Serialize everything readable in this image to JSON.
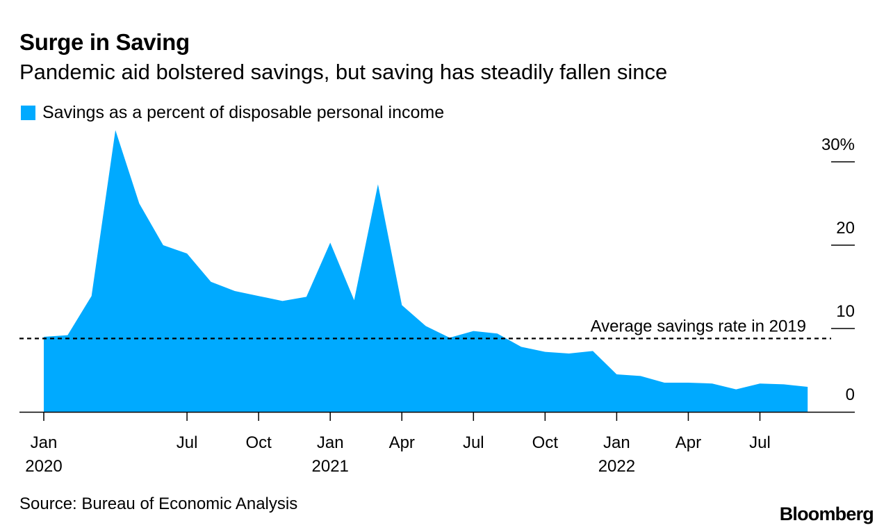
{
  "header": {
    "title": "Surge in Saving",
    "subtitle": "Pandemic aid bolstered savings, but saving has steadily fallen since"
  },
  "legend": {
    "label": "Savings as a percent of disposable personal income",
    "color": "#00aaff"
  },
  "footer": {
    "source": "Source: Bureau of Economic Analysis",
    "brand": "Bloomberg"
  },
  "chart_data": {
    "type": "area",
    "title": "Surge in Saving",
    "subtitle": "Pandemic aid bolstered savings, but saving has steadily fallen since",
    "series": [
      {
        "name": "Savings as a percent of disposable personal income",
        "color": "#00aaff",
        "x": [
          "2020-01",
          "2020-02",
          "2020-03",
          "2020-04",
          "2020-05",
          "2020-06",
          "2020-07",
          "2020-08",
          "2020-09",
          "2020-10",
          "2020-11",
          "2020-12",
          "2021-01",
          "2021-02",
          "2021-03",
          "2021-04",
          "2021-05",
          "2021-06",
          "2021-07",
          "2021-08",
          "2021-09",
          "2021-10",
          "2021-11",
          "2021-12",
          "2022-01",
          "2022-02",
          "2022-03",
          "2022-04",
          "2022-05",
          "2022-06",
          "2022-07",
          "2022-08",
          "2022-09"
        ],
        "values": [
          9.0,
          9.2,
          13.9,
          33.8,
          25.0,
          20.0,
          19.0,
          15.6,
          14.5,
          13.9,
          13.3,
          13.8,
          20.3,
          13.4,
          27.3,
          12.8,
          10.3,
          8.9,
          9.7,
          9.4,
          7.8,
          7.2,
          7.0,
          7.3,
          4.5,
          4.3,
          3.5,
          3.5,
          3.4,
          2.7,
          3.4,
          3.3,
          3.0
        ]
      }
    ],
    "reference_line": {
      "label": "Average savings rate in 2019",
      "value": 8.8,
      "style": "dashed"
    },
    "y_axis": {
      "ticks": [
        0,
        10,
        20,
        30
      ],
      "tick_labels": [
        "0",
        "10",
        "20",
        "30%"
      ],
      "position": "right",
      "ylim": [
        0,
        34
      ]
    },
    "x_axis": {
      "ticks": [
        {
          "x": "2020-01",
          "label": "Jan",
          "year": "2020"
        },
        {
          "x": "2020-07",
          "label": "Jul",
          "year": ""
        },
        {
          "x": "2020-10",
          "label": "Oct",
          "year": ""
        },
        {
          "x": "2021-01",
          "label": "Jan",
          "year": "2021"
        },
        {
          "x": "2021-04",
          "label": "Apr",
          "year": ""
        },
        {
          "x": "2021-07",
          "label": "Jul",
          "year": ""
        },
        {
          "x": "2021-10",
          "label": "Oct",
          "year": ""
        },
        {
          "x": "2022-01",
          "label": "Jan",
          "year": "2022"
        },
        {
          "x": "2022-04",
          "label": "Apr",
          "year": ""
        },
        {
          "x": "2022-07",
          "label": "Jul",
          "year": ""
        }
      ]
    },
    "grid": false,
    "legend_position": "top-left"
  }
}
